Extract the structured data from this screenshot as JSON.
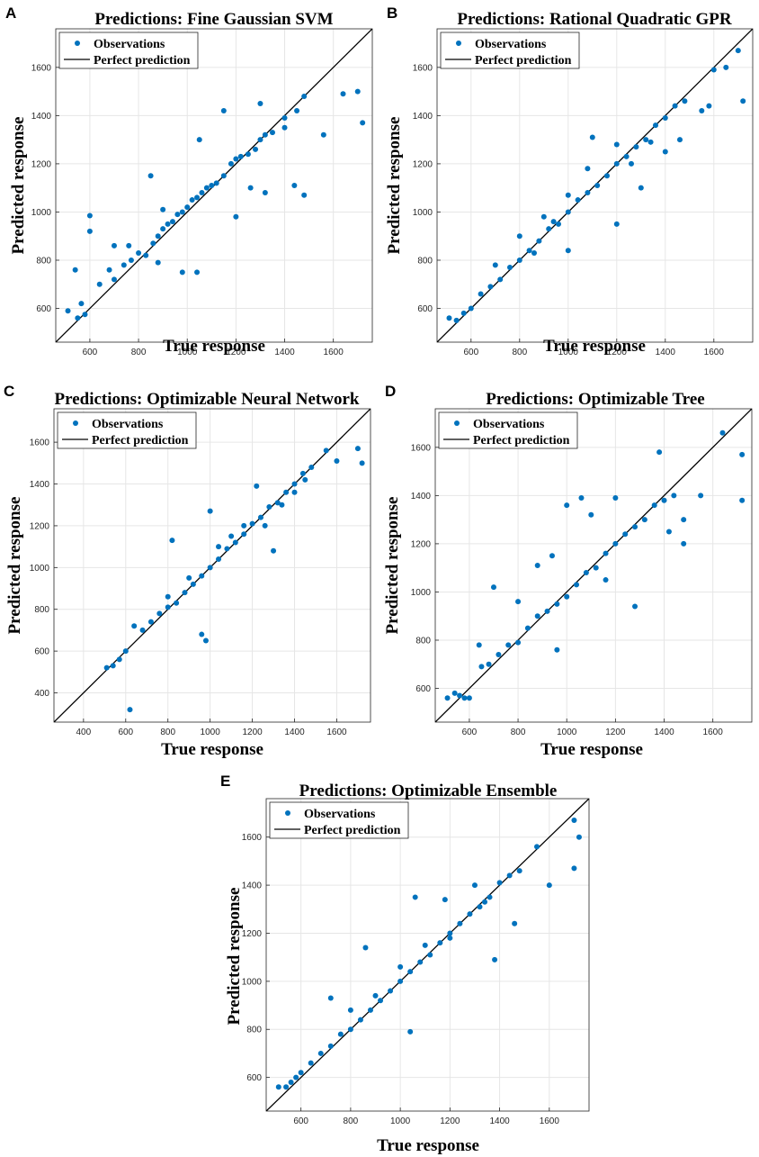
{
  "figure": {
    "colors": {
      "points": "#0072BD",
      "line": "#000000",
      "grid": "#e6e6e6",
      "axis": "#262626"
    },
    "legend": {
      "observations": "Observations",
      "perfect": "Perfect prediction"
    }
  },
  "chart_data": [
    {
      "id": "A",
      "type": "scatter",
      "panel_label": "A",
      "title": "Predictions: Fine Gaussian SVM",
      "xlabel": "True response",
      "ylabel": "Predicted response",
      "xlim": [
        460,
        1760
      ],
      "ylim": [
        460,
        1760
      ],
      "xticks": [
        600,
        800,
        1000,
        1200,
        1400,
        1600
      ],
      "yticks": [
        600,
        800,
        1000,
        1200,
        1400,
        1600
      ],
      "grid": true,
      "legend_position": "top-left",
      "series": [
        {
          "name": "Observations",
          "x": [
            510,
            540,
            565,
            580,
            600,
            640,
            680,
            700,
            740,
            770,
            800,
            830,
            860,
            880,
            900,
            920,
            940,
            960,
            980,
            1000,
            1020,
            1040,
            1060,
            1080,
            1100,
            1120,
            1150,
            1180,
            1200,
            1220,
            1250,
            1280,
            1300,
            1320,
            1350,
            1400,
            1450,
            1480,
            1560,
            1640,
            1700,
            1720,
            600,
            700,
            850,
            900,
            1050,
            1150,
            1300,
            1400,
            550,
            980,
            1040,
            1200,
            1480,
            1260,
            1320,
            1440,
            760,
            880
          ],
          "y": [
            590,
            760,
            620,
            575,
            985,
            700,
            760,
            720,
            780,
            800,
            830,
            820,
            870,
            900,
            930,
            950,
            960,
            990,
            1000,
            1020,
            1050,
            1060,
            1080,
            1100,
            1110,
            1120,
            1150,
            1200,
            1220,
            1230,
            1240,
            1260,
            1300,
            1320,
            1330,
            1390,
            1420,
            1480,
            1320,
            1490,
            1500,
            1370,
            920,
            860,
            1150,
            1010,
            1300,
            1420,
            1450,
            1350,
            560,
            750,
            750,
            980,
            1070,
            1100,
            1080,
            1110,
            860,
            790
          ]
        },
        {
          "name": "Perfect prediction",
          "x": [
            460,
            1760
          ],
          "y": [
            460,
            1760
          ]
        }
      ]
    },
    {
      "id": "B",
      "type": "scatter",
      "panel_label": "B",
      "title": "Predictions: Rational Quadratic GPR",
      "xlabel": "True response",
      "ylabel": "Predicted response",
      "xlim": [
        460,
        1760
      ],
      "ylim": [
        460,
        1760
      ],
      "xticks": [
        600,
        800,
        1000,
        1200,
        1400,
        1600
      ],
      "yticks": [
        600,
        800,
        1000,
        1200,
        1400,
        1600
      ],
      "grid": true,
      "legend_position": "top-left",
      "series": [
        {
          "name": "Observations",
          "x": [
            510,
            540,
            570,
            600,
            640,
            680,
            720,
            760,
            800,
            840,
            880,
            920,
            960,
            1000,
            1040,
            1080,
            1120,
            1160,
            1200,
            1240,
            1280,
            1320,
            1360,
            1400,
            1440,
            1480,
            1550,
            1600,
            1650,
            1700,
            1720,
            700,
            800,
            900,
            1000,
            1100,
            1200,
            1300,
            1400,
            1000,
            1080,
            1200,
            1460,
            1580,
            860,
            940,
            1260,
            1340
          ],
          "y": [
            560,
            550,
            580,
            600,
            660,
            690,
            720,
            770,
            800,
            840,
            880,
            930,
            950,
            1000,
            1050,
            1080,
            1110,
            1150,
            1200,
            1230,
            1270,
            1300,
            1360,
            1390,
            1440,
            1460,
            1420,
            1590,
            1600,
            1670,
            1460,
            780,
            900,
            980,
            840,
            1310,
            950,
            1100,
            1250,
            1070,
            1180,
            1280,
            1300,
            1440,
            830,
            960,
            1200,
            1290
          ]
        },
        {
          "name": "Perfect prediction",
          "x": [
            460,
            1760
          ],
          "y": [
            460,
            1760
          ]
        }
      ]
    },
    {
      "id": "C",
      "type": "scatter",
      "panel_label": "C",
      "title": "Predictions: Optimizable Neural Network",
      "xlabel": "True response",
      "ylabel": "Predicted response",
      "xlim": [
        260,
        1760
      ],
      "ylim": [
        260,
        1760
      ],
      "xticks": [
        400,
        600,
        800,
        1000,
        1200,
        1400,
        1600
      ],
      "yticks": [
        400,
        600,
        800,
        1000,
        1200,
        1400,
        1600
      ],
      "grid": true,
      "legend_position": "top-left",
      "series": [
        {
          "name": "Observations",
          "x": [
            510,
            540,
            570,
            600,
            640,
            680,
            720,
            760,
            800,
            840,
            880,
            920,
            960,
            1000,
            1040,
            1080,
            1120,
            1160,
            1200,
            1240,
            1280,
            1320,
            1360,
            1400,
            1440,
            1480,
            1550,
            1600,
            1700,
            1720,
            620,
            820,
            980,
            1000,
            1100,
            1220,
            1300,
            1400,
            800,
            900,
            960,
            1040,
            1160,
            1260,
            1340,
            1450
          ],
          "y": [
            520,
            530,
            560,
            600,
            720,
            700,
            740,
            780,
            810,
            830,
            880,
            920,
            960,
            1000,
            1040,
            1090,
            1120,
            1160,
            1210,
            1240,
            1290,
            1310,
            1360,
            1400,
            1450,
            1480,
            1560,
            1510,
            1570,
            1500,
            320,
            1130,
            650,
            1270,
            1150,
            1390,
            1080,
            1360,
            860,
            950,
            680,
            1100,
            1200,
            1200,
            1300,
            1420
          ]
        },
        {
          "name": "Perfect prediction",
          "x": [
            260,
            1760
          ],
          "y": [
            260,
            1760
          ]
        }
      ]
    },
    {
      "id": "D",
      "type": "scatter",
      "panel_label": "D",
      "title": "Predictions: Optimizable Tree",
      "xlabel": "True response",
      "ylabel": "Predicted response",
      "xlim": [
        460,
        1760
      ],
      "ylim": [
        460,
        1760
      ],
      "xticks": [
        600,
        800,
        1000,
        1200,
        1400,
        1600
      ],
      "yticks": [
        600,
        800,
        1000,
        1200,
        1400,
        1600
      ],
      "grid": true,
      "legend_position": "top-left",
      "series": [
        {
          "name": "Observations",
          "x": [
            510,
            540,
            560,
            580,
            600,
            640,
            680,
            720,
            760,
            800,
            840,
            880,
            920,
            960,
            1000,
            1040,
            1080,
            1120,
            1160,
            1200,
            1240,
            1280,
            1320,
            1360,
            1400,
            1440,
            1480,
            1550,
            1640,
            1720,
            1720,
            700,
            800,
            880,
            960,
            1000,
            1060,
            1200,
            1280,
            1380,
            1420,
            1480,
            650,
            940,
            1100,
            1160
          ],
          "y": [
            560,
            580,
            570,
            560,
            560,
            780,
            700,
            740,
            780,
            790,
            850,
            900,
            920,
            950,
            980,
            1030,
            1080,
            1100,
            1160,
            1200,
            1240,
            1270,
            1300,
            1360,
            1380,
            1400,
            1300,
            1400,
            1660,
            1570,
            1380,
            1020,
            960,
            1110,
            760,
            1360,
            1390,
            1390,
            940,
            1580,
            1250,
            1200,
            690,
            1150,
            1320,
            1050
          ]
        },
        {
          "name": "Perfect prediction",
          "x": [
            460,
            1760
          ],
          "y": [
            460,
            1760
          ]
        }
      ]
    },
    {
      "id": "E",
      "type": "scatter",
      "panel_label": "E",
      "title": "Predictions: Optimizable Ensemble",
      "xlabel": "True response",
      "ylabel": "Predicted response",
      "xlim": [
        460,
        1760
      ],
      "ylim": [
        460,
        1760
      ],
      "xticks": [
        600,
        800,
        1000,
        1200,
        1400,
        1600
      ],
      "yticks": [
        600,
        800,
        1000,
        1200,
        1400,
        1600
      ],
      "grid": true,
      "legend_position": "top-left",
      "series": [
        {
          "name": "Observations",
          "x": [
            510,
            540,
            560,
            580,
            600,
            640,
            680,
            720,
            760,
            800,
            840,
            880,
            920,
            960,
            1000,
            1040,
            1080,
            1120,
            1160,
            1200,
            1240,
            1280,
            1320,
            1360,
            1400,
            1440,
            1480,
            1550,
            1600,
            1700,
            1720,
            1700,
            720,
            860,
            1040,
            1060,
            1180,
            1300,
            1380,
            1460,
            800,
            900,
            1000,
            1100,
            1200,
            1340
          ],
          "y": [
            560,
            560,
            580,
            600,
            620,
            660,
            700,
            730,
            780,
            800,
            840,
            880,
            920,
            960,
            1000,
            1040,
            1080,
            1110,
            1160,
            1200,
            1240,
            1280,
            1310,
            1350,
            1410,
            1440,
            1460,
            1560,
            1400,
            1670,
            1600,
            1470,
            930,
            1140,
            790,
            1350,
            1340,
            1400,
            1090,
            1240,
            880,
            940,
            1060,
            1150,
            1180,
            1330
          ]
        },
        {
          "name": "Perfect prediction",
          "x": [
            460,
            1760
          ],
          "y": [
            460,
            1760
          ]
        }
      ]
    }
  ]
}
